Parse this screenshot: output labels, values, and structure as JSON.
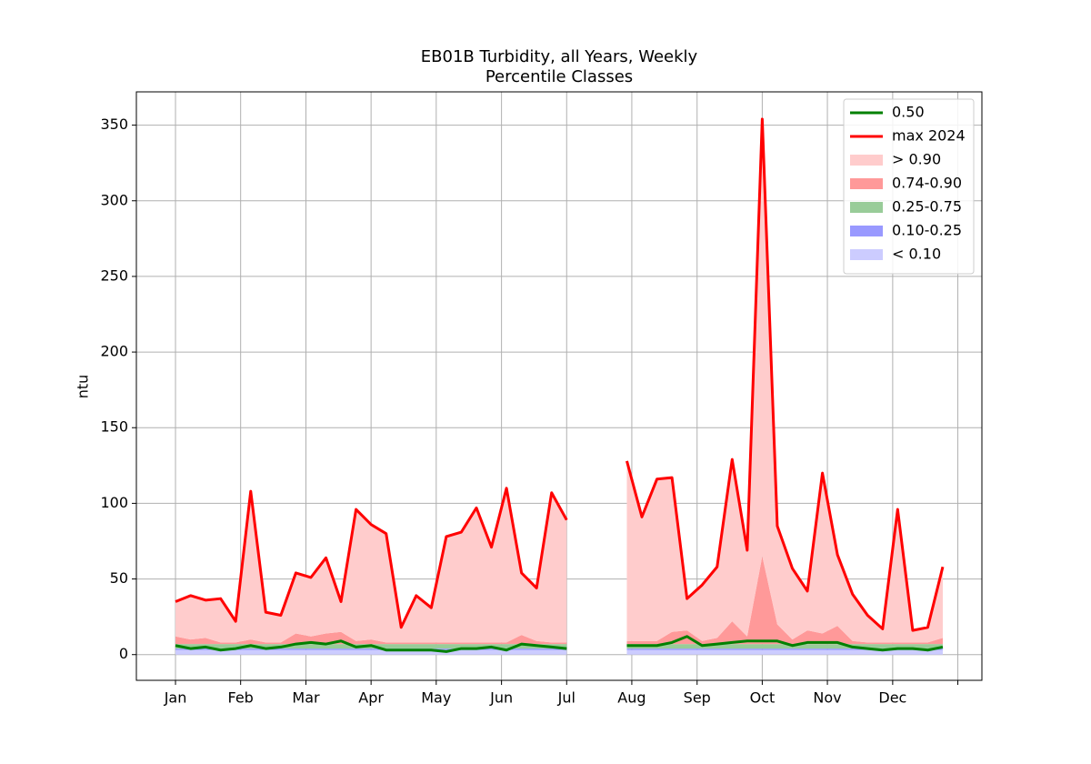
{
  "chart_data": {
    "type": "line",
    "title": "EB01B Turbidity, all Years, Weekly",
    "subtitle": "Percentile Classes",
    "ylabel": "ntu",
    "x": [
      0,
      1,
      2,
      3,
      4,
      5,
      6,
      7,
      8,
      9,
      10,
      11,
      12,
      13,
      14,
      15,
      16,
      17,
      18,
      19,
      20,
      21,
      22,
      23,
      24,
      25,
      26,
      27,
      28,
      29,
      30,
      31,
      32,
      33,
      34,
      35,
      36,
      37,
      38,
      39,
      40,
      41,
      42,
      43,
      44,
      45,
      46,
      47,
      48,
      49,
      50,
      51
    ],
    "xlim": [
      -2.6,
      53.6
    ],
    "xticks": [
      {
        "value": 0,
        "label": "Jan"
      },
      {
        "value": 4.33,
        "label": "Feb"
      },
      {
        "value": 8.67,
        "label": "Mar"
      },
      {
        "value": 13,
        "label": "Apr"
      },
      {
        "value": 17.33,
        "label": "May"
      },
      {
        "value": 21.67,
        "label": "Jun"
      },
      {
        "value": 26,
        "label": "Jul"
      },
      {
        "value": 30.33,
        "label": "Aug"
      },
      {
        "value": 34.67,
        "label": "Sep"
      },
      {
        "value": 39,
        "label": "Oct"
      },
      {
        "value": 43.33,
        "label": "Nov"
      },
      {
        "value": 47.67,
        "label": "Dec"
      },
      {
        "value": 52,
        "label": null
      }
    ],
    "ylim": [
      -17,
      372
    ],
    "yticks": [
      0,
      50,
      100,
      150,
      200,
      250,
      300,
      350
    ],
    "grid": true,
    "legend": "upper right",
    "series": [
      {
        "name": "0.50",
        "kind": "line",
        "color": "#008000",
        "values": [
          6,
          4,
          5,
          3,
          4,
          6,
          4,
          5,
          7,
          8,
          7,
          9,
          5,
          6,
          3,
          3,
          3,
          3,
          2,
          4,
          4,
          5,
          3,
          7,
          6,
          5,
          4,
          null,
          null,
          null,
          6,
          6,
          6,
          8,
          12,
          6,
          7,
          8,
          9,
          9,
          9,
          6,
          8,
          8,
          8,
          5,
          4,
          3,
          4,
          4,
          3,
          5
        ]
      },
      {
        "name": "max 2024",
        "kind": "line",
        "color": "#ff0000",
        "values": [
          35,
          39,
          36,
          37,
          22,
          108,
          28,
          26,
          54,
          51,
          64,
          35,
          96,
          86,
          80,
          18,
          39,
          31,
          78,
          81,
          97,
          71,
          110,
          54,
          44,
          107,
          89,
          null,
          null,
          null,
          128,
          91,
          116,
          117,
          37,
          46,
          58,
          129,
          69,
          354,
          85,
          57,
          42,
          120,
          66,
          40,
          26,
          17,
          96,
          16,
          18,
          58
        ]
      },
      {
        "name": "> 0.90",
        "kind": "area",
        "color": "#ffcccc",
        "values": [
          23,
          29,
          25,
          29,
          14,
          98,
          20,
          18,
          40,
          39,
          50,
          20,
          87,
          76,
          72,
          10,
          31,
          23,
          70,
          73,
          89,
          63,
          102,
          41,
          35,
          99,
          81,
          null,
          null,
          null,
          119,
          82,
          107,
          102,
          21,
          37,
          47,
          107,
          57,
          289,
          65,
          47,
          26,
          106,
          47,
          31,
          18,
          9,
          88,
          8,
          10,
          47
        ]
      },
      {
        "name": "0.74-0.90",
        "kind": "area",
        "color": "#ff9999",
        "values": [
          5,
          3,
          4,
          1,
          1,
          3,
          1,
          1,
          7,
          5,
          7,
          8,
          2,
          3,
          1,
          1,
          1,
          1,
          1,
          1,
          1,
          1,
          1,
          6,
          2,
          1,
          1,
          null,
          null,
          null,
          2,
          2,
          2,
          8,
          9,
          2,
          4,
          15,
          5,
          58,
          13,
          3,
          9,
          7,
          12,
          2,
          1,
          1,
          1,
          1,
          1,
          4
        ]
      },
      {
        "name": "0.25-0.75",
        "kind": "area",
        "color": "#99cc99",
        "values": [
          3,
          3,
          3,
          3,
          3,
          3,
          3,
          3,
          3,
          3,
          3,
          3,
          3,
          3,
          3,
          3,
          3,
          3,
          3,
          3,
          3,
          3,
          3,
          3,
          3,
          3,
          3,
          null,
          null,
          null,
          3,
          3,
          3,
          3,
          3,
          3,
          3,
          3,
          3,
          3,
          3,
          3,
          3,
          3,
          3,
          3,
          3,
          3,
          3,
          3,
          3,
          3
        ]
      },
      {
        "name": "0.10-0.25",
        "kind": "area",
        "color": "#9999ff",
        "values": [
          1,
          1,
          1,
          1,
          1,
          1,
          1,
          1,
          1,
          1,
          1,
          1,
          1,
          1,
          1,
          1,
          1,
          1,
          1,
          1,
          1,
          1,
          1,
          1,
          1,
          1,
          1,
          null,
          null,
          null,
          1,
          1,
          1,
          1,
          1,
          1,
          1,
          1,
          1,
          1,
          1,
          1,
          1,
          1,
          1,
          1,
          1,
          1,
          1,
          1,
          1,
          1
        ]
      },
      {
        "name": "< 0.10",
        "kind": "area",
        "color": "#ccccff",
        "values": [
          3,
          3,
          3,
          3,
          3,
          3,
          3,
          3,
          3,
          3,
          3,
          3,
          3,
          3,
          3,
          3,
          3,
          3,
          3,
          3,
          3,
          3,
          3,
          3,
          3,
          3,
          3,
          null,
          null,
          null,
          3,
          3,
          3,
          3,
          3,
          3,
          3,
          3,
          3,
          3,
          3,
          3,
          3,
          3,
          3,
          3,
          3,
          3,
          3,
          3,
          3,
          3
        ]
      }
    ]
  }
}
